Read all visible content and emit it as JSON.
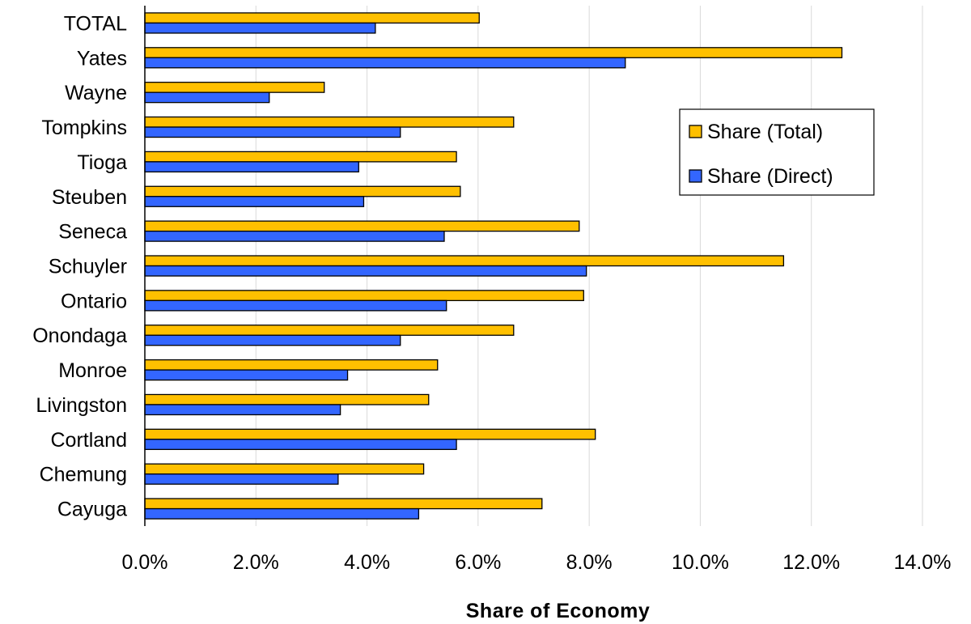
{
  "chart_data": {
    "type": "bar",
    "orientation": "horizontal",
    "categories": [
      "Cayuga",
      "Chemung",
      "Cortland",
      "Livingston",
      "Monroe",
      "Onondaga",
      "Ontario",
      "Schuyler",
      "Seneca",
      "Steuben",
      "Tioga",
      "Tompkins",
      "Wayne",
      "Yates",
      "TOTAL"
    ],
    "series": [
      {
        "name": "Share (Total)",
        "color": "#FFC000",
        "values": [
          0.0715,
          0.0502,
          0.0811,
          0.0511,
          0.0527,
          0.0664,
          0.079,
          0.115,
          0.0782,
          0.0568,
          0.0561,
          0.0664,
          0.0323,
          0.1255,
          0.0602
        ]
      },
      {
        "name": "Share (Direct)",
        "color": "#3366FF",
        "values": [
          0.0493,
          0.0348,
          0.0561,
          0.0352,
          0.0365,
          0.046,
          0.0543,
          0.0795,
          0.0539,
          0.0394,
          0.0385,
          0.046,
          0.0224,
          0.0865,
          0.0415
        ]
      }
    ],
    "title": "",
    "xlabel": "Share of Economy",
    "ylabel": "",
    "xlim": [
      0,
      0.14
    ],
    "x_ticks": [
      0,
      0.02,
      0.04,
      0.06,
      0.08,
      0.1,
      0.12,
      0.14
    ],
    "x_tick_labels": [
      "0.0%",
      "2.0%",
      "4.0%",
      "6.0%",
      "8.0%",
      "10.0%",
      "12.0%",
      "14.0%"
    ],
    "grid": "vertical",
    "legend_placement": "upper-right",
    "legend_order": [
      "Share (Total)",
      "Share (Direct)"
    ]
  }
}
